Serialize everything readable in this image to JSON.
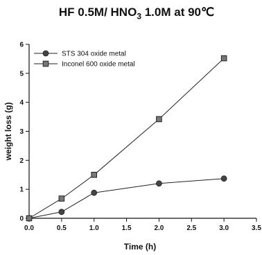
{
  "chart_data": {
    "type": "line",
    "title_parts": {
      "pre": "HF 0.5M/ HNO",
      "sub": "3",
      "post": " 1.0M at 90℃"
    },
    "xlabel": "Time (h)",
    "ylabel": "weight loss (g)",
    "xlim": [
      0.0,
      3.5
    ],
    "ylim": [
      0,
      6
    ],
    "x_ticks": [
      "0.0",
      "0.5",
      "1.0",
      "1.5",
      "2.0",
      "2.5",
      "3.0",
      "3.5"
    ],
    "y_ticks": [
      "0",
      "1",
      "2",
      "3",
      "4",
      "5",
      "6"
    ],
    "x": [
      0.0,
      0.5,
      1.0,
      2.0,
      3.0
    ],
    "series": [
      {
        "name": "STS 304 oxide metal",
        "marker": "circle",
        "values": [
          0.0,
          0.22,
          0.88,
          1.2,
          1.37
        ]
      },
      {
        "name": "Inconel 600 oxide metal",
        "marker": "square",
        "values": [
          0.0,
          0.68,
          1.5,
          3.42,
          5.52
        ]
      }
    ],
    "legend": "top-left",
    "grid": false,
    "colors": {
      "line": "#222222",
      "marker": "#444444",
      "axis": "#111111"
    }
  }
}
